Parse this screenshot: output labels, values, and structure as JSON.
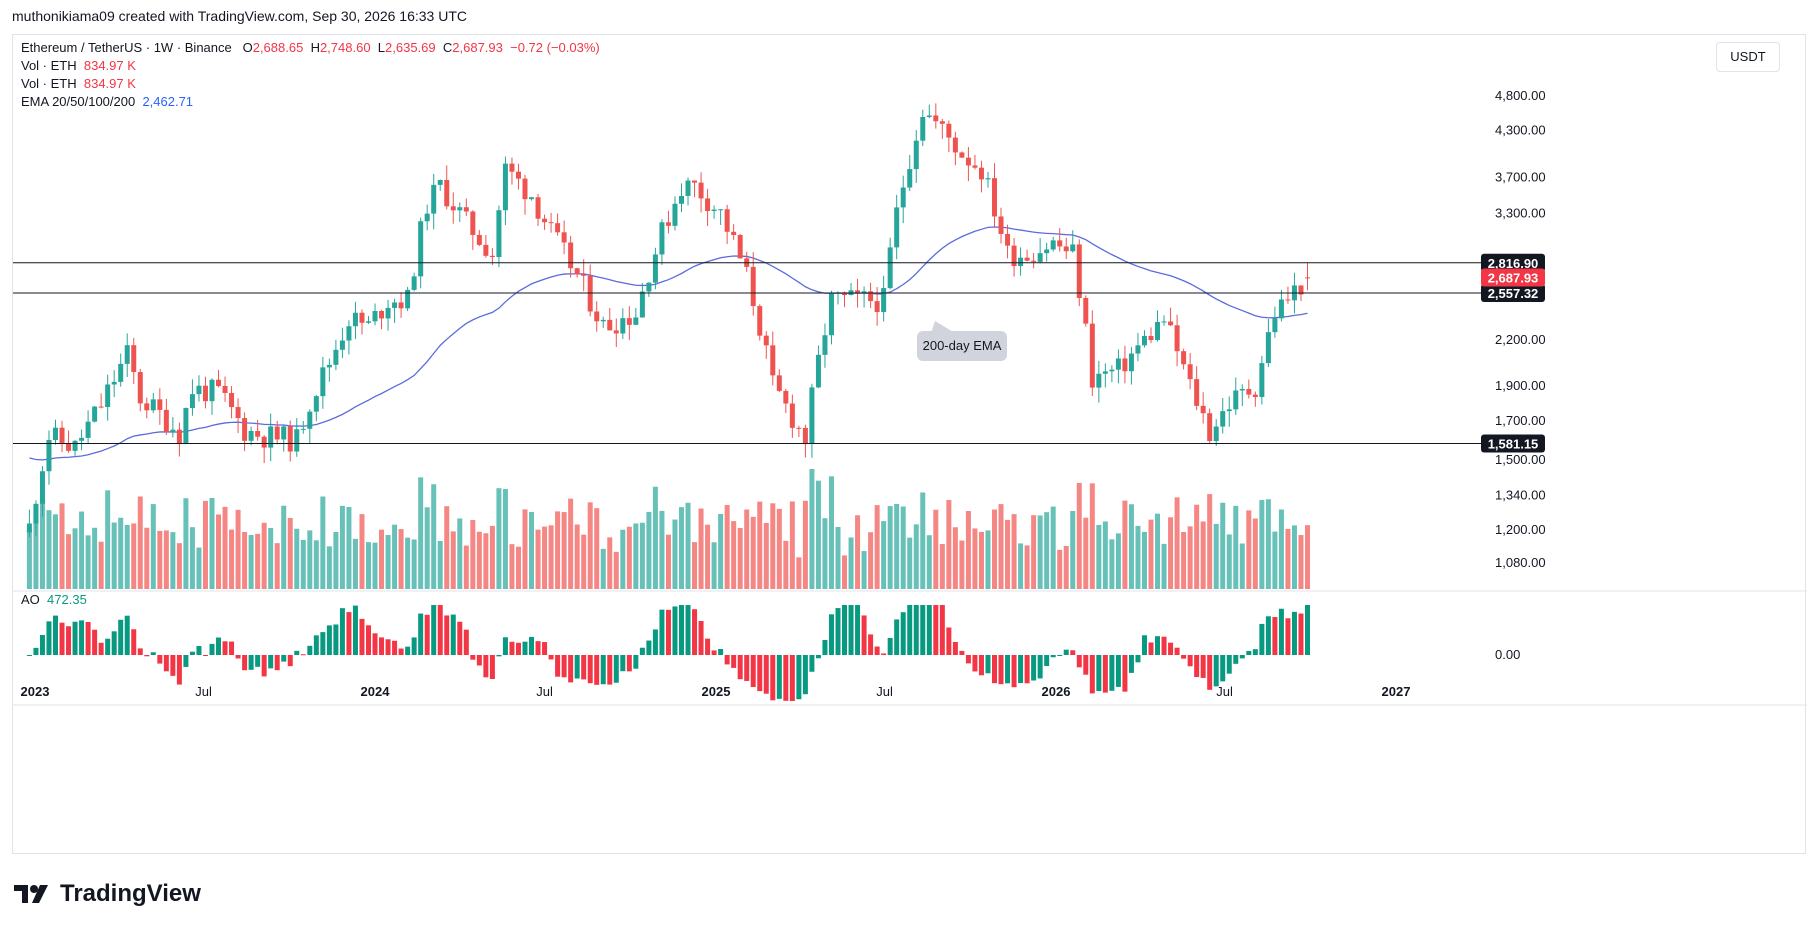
{
  "header": {
    "attribution": "muthonikiama09 created with TradingView.com, Sep 30, 2026 16:33 UTC"
  },
  "legend": {
    "symbol": "Ethereum / TetherUS · 1W · Binance",
    "o_label": "O",
    "o_value": "2,688.65",
    "h_label": "H",
    "h_value": "2,748.60",
    "l_label": "L",
    "l_value": "2,635.69",
    "c_label": "C",
    "c_value": "2,687.93",
    "change": "−0.72 (−0.03%)",
    "vol1_label": "Vol · ETH",
    "vol1_value": "834.97 K",
    "vol2_label": "Vol · ETH",
    "vol2_value": "834.97 K",
    "ema_label": "EMA 20/50/100/200",
    "ema_value": "2,462.71",
    "ao_label": "AO",
    "ao_value": "472.35"
  },
  "currency_button": "USDT",
  "brand": "TradingView",
  "colors": {
    "up": "#26a69a",
    "down": "#ef5350",
    "ao_up": "#089981",
    "ao_down": "#f23645",
    "ema": "#5b6bdc"
  },
  "chart_data": {
    "type": "candlestick",
    "title": "Ethereum / TetherUS · 1W · Binance",
    "y_scale": "log",
    "y_ticks": [
      "4,800.00",
      "4,300.00",
      "3,700.00",
      "3,300.00",
      "2,200.00",
      "1,900.00",
      "1,700.00",
      "1,500.00",
      "1,340.00",
      "1,200.00",
      "1,080.00"
    ],
    "x_ticks": [
      "2023",
      "Jul",
      "2024",
      "Jul",
      "2025",
      "Jul",
      "2026",
      "Jul",
      "2027"
    ],
    "horizontal_lines": [
      {
        "price": 2816.9,
        "label": "2,816.90"
      },
      {
        "price": 2557.32,
        "label": "2,557.32"
      },
      {
        "price": 1581.15,
        "label": "1,581.15"
      }
    ],
    "last_price": {
      "price": 2687.93,
      "label": "2,687.93"
    },
    "annotation": "200-day EMA",
    "ao_zero_label": "0.00",
    "anchors": [
      [
        "2022-12-26",
        1190,
        1210
      ],
      [
        "2023-01-16",
        1560,
        1620
      ],
      [
        "2023-02-13",
        1660,
        1560
      ],
      [
        "2023-03-13",
        1560,
        1790
      ],
      [
        "2023-04-10",
        1870,
        2100
      ],
      [
        "2023-04-24",
        1870,
        1830
      ],
      [
        "2023-06-05",
        1800,
        1640
      ],
      [
        "2023-06-19",
        1700,
        1880
      ],
      [
        "2023-07-17",
        1900,
        1860
      ],
      [
        "2023-08-14",
        1830,
        1650
      ],
      [
        "2023-09-04",
        1640,
        1620
      ],
      [
        "2023-10-09",
        1560,
        1600
      ],
      [
        "2023-10-23",
        1650,
        1810
      ],
      [
        "2023-11-13",
        2000,
        2050
      ],
      [
        "2023-12-04",
        2190,
        2360
      ],
      [
        "2023-12-25",
        2300,
        2300
      ],
      [
        "2024-01-15",
        2400,
        2500
      ],
      [
        "2024-02-05",
        2300,
        2500
      ],
      [
        "2024-02-26",
        2900,
        3400
      ],
      [
        "2024-03-11",
        3600,
        3600
      ],
      [
        "2024-04-08",
        3500,
        3200
      ],
      [
        "2024-05-06",
        3200,
        2900
      ],
      [
        "2024-05-20",
        2900,
        3800
      ],
      [
        "2024-06-17",
        3600,
        3500
      ],
      [
        "2024-07-08",
        3500,
        3100
      ],
      [
        "2024-08-05",
        3200,
        2700
      ],
      [
        "2024-09-02",
        2500,
        2300
      ],
      [
        "2024-10-07",
        2500,
        2400
      ],
      [
        "2024-11-04",
        2700,
        3100
      ],
      [
        "2024-11-25",
        3300,
        3600
      ],
      [
        "2024-12-09",
        3900,
        3600
      ],
      [
        "2025-01-06",
        3600,
        3300
      ],
      [
        "2025-02-03",
        3300,
        2700
      ],
      [
        "2025-03-03",
        2200,
        1900
      ],
      [
        "2025-04-07",
        1600,
        1600
      ],
      [
        "2025-05-05",
        1800,
        2500
      ],
      [
        "2025-06-09",
        2500,
        2500
      ],
      [
        "2025-06-30",
        2400,
        2500
      ],
      [
        "2025-07-14",
        2600,
        3300
      ],
      [
        "2025-08-11",
        3700,
        4600
      ],
      [
        "2025-08-25",
        4700,
        4400
      ],
      [
        "2025-09-22",
        4300,
        4000
      ],
      [
        "2025-10-13",
        4000,
        3800
      ],
      [
        "2025-11-10",
        3500,
        2900
      ],
      [
        "2025-12-01",
        2900,
        2900
      ],
      [
        "2025-12-29",
        3000,
        3000
      ],
      [
        "2026-01-19",
        3000,
        2900
      ],
      [
        "2026-02-09",
        2300,
        1950
      ],
      [
        "2026-03-09",
        2000,
        2000
      ],
      [
        "2026-04-06",
        2100,
        2200
      ],
      [
        "2026-04-27",
        2400,
        2350
      ],
      [
        "2026-05-25",
        2150,
        1900
      ],
      [
        "2026-06-15",
        1700,
        1640
      ],
      [
        "2026-07-06",
        1750,
        1800
      ],
      [
        "2026-08-03",
        1800,
        1900
      ],
      [
        "2026-08-24",
        2500,
        2400
      ],
      [
        "2026-09-28",
        2688.65,
        2687.93
      ]
    ]
  }
}
